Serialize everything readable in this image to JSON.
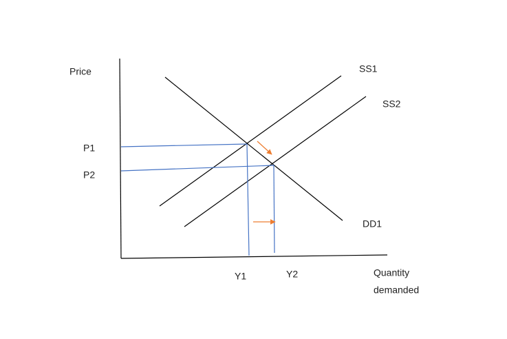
{
  "y_axis_label": "Price",
  "x_axis_label": [
    "Quantity",
    "demanded"
  ],
  "curves": {
    "supply_1": "SS1",
    "supply_2": "SS2",
    "demand": "DD1"
  },
  "price_levels": [
    "P1",
    "P2"
  ],
  "quantity_levels": [
    "Y1",
    "Y2"
  ]
}
